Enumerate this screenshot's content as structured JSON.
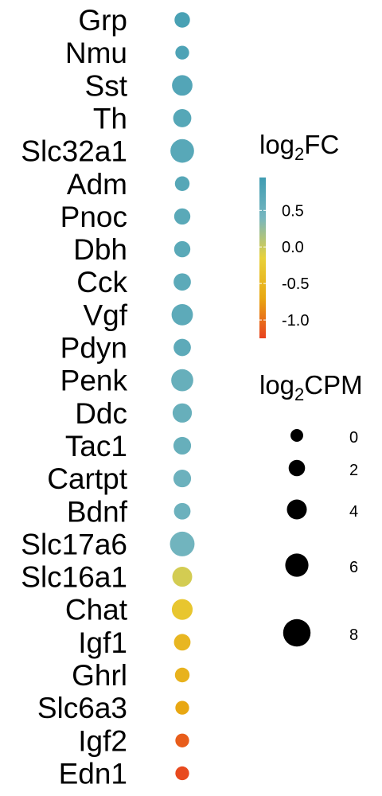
{
  "chart_data": {
    "type": "scatter",
    "genes": [
      "Grp",
      "Nmu",
      "Sst",
      "Th",
      "Slc32a1",
      "Adm",
      "Pnoc",
      "Dbh",
      "Cck",
      "Vgf",
      "Pdyn",
      "Penk",
      "Ddc",
      "Tac1",
      "Cartpt",
      "Bdnf",
      "Slc17a6",
      "Slc16a1",
      "Chat",
      "Igf1",
      "Ghrl",
      "Slc6a3",
      "Igf2",
      "Edn1"
    ],
    "log2FC": [
      0.85,
      0.8,
      0.75,
      0.72,
      0.7,
      0.72,
      0.68,
      0.68,
      0.66,
      0.65,
      0.65,
      0.55,
      0.55,
      0.55,
      0.5,
      0.5,
      0.45,
      -0.05,
      -0.3,
      -0.5,
      -0.55,
      -0.7,
      -1.1,
      -1.2
    ],
    "log2CPM": [
      2.0,
      0.8,
      5.0,
      3.5,
      7.3,
      1.6,
      2.4,
      2.4,
      3.0,
      5.6,
      3.0,
      6.1,
      4.2,
      3.2,
      3.2,
      2.6,
      8.1,
      4.6,
      5.2,
      2.6,
      1.6,
      -0.6,
      -0.6,
      -1.2
    ],
    "legend": {
      "color": {
        "title_main": "log",
        "title_sub": "2",
        "title_suffix": "FC",
        "ticks": [
          0.5,
          0.0,
          -0.5,
          -1.0
        ],
        "tick_labels": [
          "0.5",
          "0.0",
          "-0.5",
          "-1.0"
        ],
        "range": [
          -1.25,
          0.95
        ],
        "colors": [
          "#e8411f",
          "#e8a712",
          "#e8d13a",
          "#76b6bf",
          "#3f9cb2"
        ]
      },
      "size": {
        "title_main": "log",
        "title_sub": "2",
        "title_suffix": "CPM",
        "values": [
          0,
          2,
          4,
          6,
          8
        ],
        "labels": [
          "0",
          "2",
          "4",
          "6",
          "8"
        ]
      }
    }
  }
}
